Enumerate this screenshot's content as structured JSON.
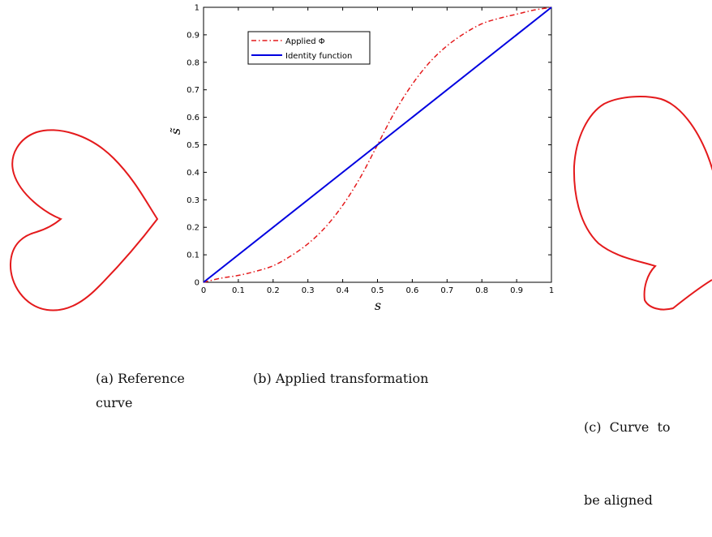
{
  "captions": {
    "a_line1": "(a) Reference",
    "a_line2": "curve",
    "b_line1": "(b) Applied transformation",
    "c_line1": "(c)  Curve  to",
    "c_line2": "be aligned"
  },
  "colors": {
    "applied": "#e41a1c",
    "identity": "#0000e0",
    "curves": "#e41a1c"
  },
  "chart_data": {
    "type": "line",
    "xlabel": "s",
    "ylabel": "s̃",
    "xlim": [
      0,
      1
    ],
    "ylim": [
      0,
      1
    ],
    "xticks": [
      "0",
      "0.1",
      "0.2",
      "0.3",
      "0.4",
      "0.5",
      "0.6",
      "0.7",
      "0.8",
      "0.9",
      "1"
    ],
    "yticks": [
      "0",
      "0.1",
      "0.2",
      "0.3",
      "0.4",
      "0.5",
      "0.6",
      "0.7",
      "0.8",
      "0.9",
      "1"
    ],
    "grid": false,
    "legend_position": "top-left",
    "series": [
      {
        "name": "Applied Φ",
        "style": "dash-dot",
        "color": "#e41a1c",
        "x": [
          0,
          0.05,
          0.1,
          0.15,
          0.2,
          0.25,
          0.3,
          0.35,
          0.4,
          0.45,
          0.5,
          0.55,
          0.6,
          0.65,
          0.7,
          0.75,
          0.8,
          0.85,
          0.9,
          0.95,
          1
        ],
        "y": [
          0,
          0.015,
          0.025,
          0.04,
          0.06,
          0.095,
          0.14,
          0.2,
          0.28,
          0.38,
          0.5,
          0.62,
          0.72,
          0.8,
          0.86,
          0.905,
          0.94,
          0.96,
          0.975,
          0.99,
          1
        ]
      },
      {
        "name": "Identity function",
        "style": "solid",
        "color": "#0000e0",
        "x": [
          0,
          1
        ],
        "y": [
          0,
          1
        ]
      }
    ]
  }
}
